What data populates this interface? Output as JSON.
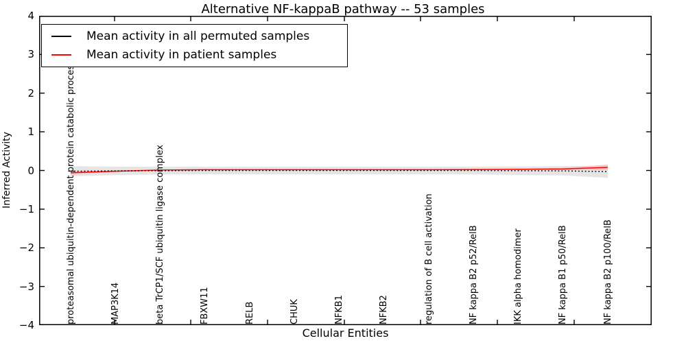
{
  "window": {
    "background_color": "#ffffff"
  },
  "chart_data": {
    "type": "line",
    "title": "Alternative NF-kappaB pathway -- 53 samples",
    "xlabel": "Cellular Entities",
    "ylabel": "Inferred Activity",
    "ylim": [
      -4,
      4
    ],
    "ytick_values": [
      4,
      3,
      2,
      1,
      0,
      -1,
      -2,
      -3,
      -4
    ],
    "ytick_labels": [
      "4",
      "3",
      "2",
      "1",
      "0",
      "−1",
      "−2",
      "−3",
      "−4"
    ],
    "grid": false,
    "legend_position": "upper left",
    "legend_border_color": "#000000",
    "categories": [
      "proteasomal ubiquitin-dependent protein catabolic process",
      "MAP3K14",
      "beta TrCP1/SCF ubiquitin ligase complex",
      "FBXW11",
      "RELB",
      "CHUK",
      "NFKB1",
      "NFKB2",
      "regulation of B cell activation",
      "NF kappa B2 p52/RelB",
      "IKK alpha homodimer",
      "NF kappa B1 p50/RelB",
      "NF kappa B2 p100/RelB"
    ],
    "series": [
      {
        "name": "Mean activity in all permuted samples",
        "color": "#000000",
        "line_style": "dotted",
        "values": [
          -0.02,
          -0.01,
          -0.005,
          0,
          0,
          0,
          0,
          0,
          0,
          0,
          -0.005,
          -0.01,
          -0.03
        ],
        "band_color": "#e5e5e5",
        "band_halfwidths": [
          0.13,
          0.11,
          0.1,
          0.1,
          0.1,
          0.1,
          0.1,
          0.1,
          0.1,
          0.1,
          0.11,
          0.12,
          0.16
        ]
      },
      {
        "name": "Mean activity in patient samples",
        "color": "#ff0000",
        "line_style": "solid",
        "values": [
          -0.06,
          -0.02,
          0.01,
          0.02,
          0.02,
          0.02,
          0.02,
          0.02,
          0.02,
          0.025,
          0.03,
          0.04,
          0.08
        ],
        "band_color": "#f4c7c7",
        "band_halfwidths": [
          0.05,
          0.015,
          0,
          0,
          0,
          0,
          0,
          0,
          0,
          0,
          0.01,
          0.03,
          0.07
        ]
      }
    ]
  }
}
